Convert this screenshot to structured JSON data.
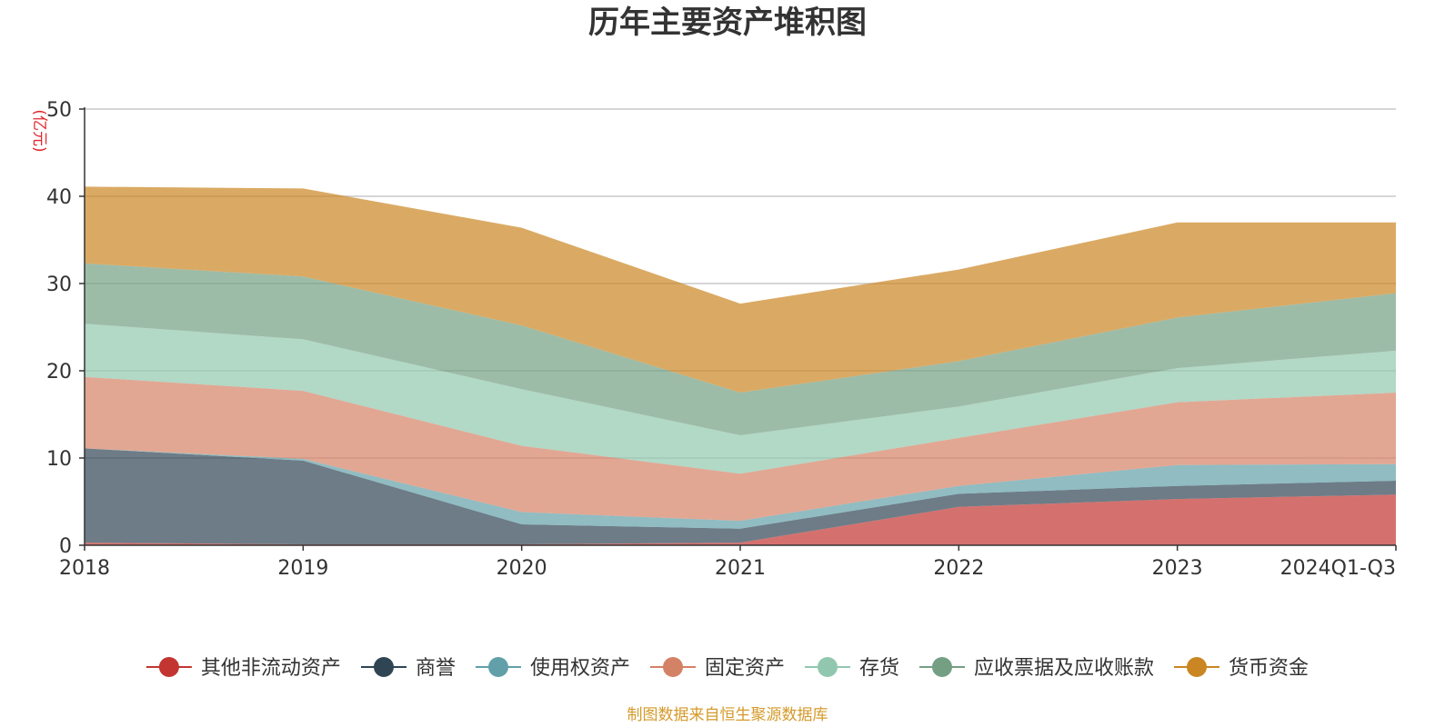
{
  "chart_data": {
    "type": "area",
    "stacked": true,
    "title": "历年主要资产堆积图",
    "unit_label": "(亿元)",
    "source": "制图数据来自恒生聚源数据库",
    "categories": [
      "2018",
      "2019",
      "2020",
      "2021",
      "2022",
      "2023",
      "2024Q1-Q3"
    ],
    "ylim": [
      0,
      50
    ],
    "yticks": [
      0,
      10,
      20,
      30,
      40,
      50
    ],
    "grid": true,
    "legend_position": "bottom",
    "series": [
      {
        "name": "其他非流动资产",
        "color": "#c23531",
        "values": [
          0.3,
          0.1,
          0.1,
          0.3,
          4.4,
          5.3,
          5.8
        ]
      },
      {
        "name": "商誉",
        "color": "#2f4554",
        "values": [
          10.8,
          9.6,
          2.3,
          1.6,
          1.5,
          1.5,
          1.6
        ]
      },
      {
        "name": "使用权资产",
        "color": "#61a0a8",
        "values": [
          0.0,
          0.2,
          1.4,
          0.9,
          0.9,
          2.4,
          1.9
        ]
      },
      {
        "name": "固定资产",
        "color": "#d48265",
        "values": [
          8.2,
          7.8,
          7.6,
          5.4,
          5.5,
          7.2,
          8.2
        ]
      },
      {
        "name": "存货",
        "color": "#91c7ae",
        "values": [
          6.1,
          5.9,
          6.5,
          4.4,
          3.6,
          3.9,
          4.8
        ]
      },
      {
        "name": "应收票据及应收账款",
        "color": "#749f83",
        "values": [
          6.9,
          7.2,
          7.3,
          4.9,
          5.2,
          5.8,
          6.6
        ]
      },
      {
        "name": "货币资金",
        "color": "#ca8622",
        "values": [
          8.8,
          10.1,
          11.2,
          10.2,
          10.5,
          10.9,
          8.1
        ]
      }
    ]
  }
}
